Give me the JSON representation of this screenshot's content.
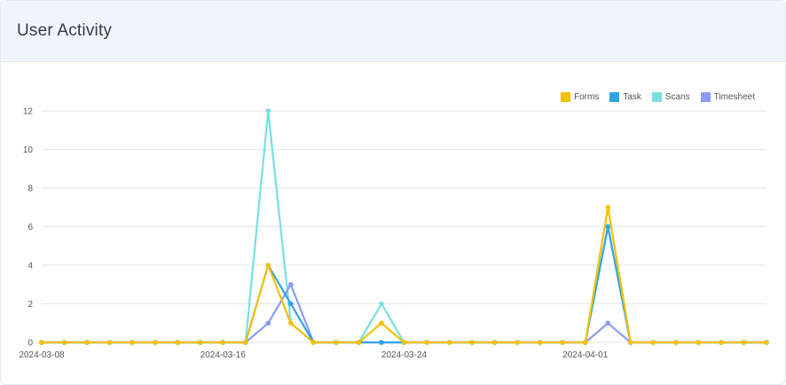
{
  "header": {
    "title": "User Activity"
  },
  "chart_data": {
    "type": "line",
    "title": "",
    "xlabel": "",
    "ylabel": "",
    "ylim": [
      0,
      12
    ],
    "yticks": [
      0,
      2,
      4,
      6,
      8,
      10,
      12
    ],
    "x": [
      "2024-03-08",
      "2024-03-09",
      "2024-03-10",
      "2024-03-11",
      "2024-03-12",
      "2024-03-13",
      "2024-03-14",
      "2024-03-15",
      "2024-03-16",
      "2024-03-17",
      "2024-03-18",
      "2024-03-19",
      "2024-03-20",
      "2024-03-21",
      "2024-03-22",
      "2024-03-23",
      "2024-03-24",
      "2024-03-25",
      "2024-03-26",
      "2024-03-27",
      "2024-03-28",
      "2024-03-29",
      "2024-03-30",
      "2024-03-31",
      "2024-04-01",
      "2024-04-02",
      "2024-04-03",
      "2024-04-04",
      "2024-04-05",
      "2024-04-06",
      "2024-04-07",
      "2024-04-08",
      "2024-04-09"
    ],
    "xticks": [
      "2024-03-08",
      "2024-03-16",
      "2024-03-24",
      "2024-04-01"
    ],
    "grid": true,
    "legend_position": "top-right",
    "series": [
      {
        "name": "Forms",
        "color": "#f5c000",
        "values": [
          0,
          0,
          0,
          0,
          0,
          0,
          0,
          0,
          0,
          0,
          4,
          1,
          0,
          0,
          0,
          1,
          0,
          0,
          0,
          0,
          0,
          0,
          0,
          0,
          0,
          7,
          0,
          0,
          0,
          0,
          0,
          0,
          0
        ]
      },
      {
        "name": "Task",
        "color": "#2fa3e8",
        "values": [
          0,
          0,
          0,
          0,
          0,
          0,
          0,
          0,
          0,
          0,
          4,
          2,
          0,
          0,
          0,
          0,
          0,
          0,
          0,
          0,
          0,
          0,
          0,
          0,
          0,
          6,
          0,
          0,
          0,
          0,
          0,
          0,
          0
        ]
      },
      {
        "name": "Scans",
        "color": "#77e0e3",
        "values": [
          0,
          0,
          0,
          0,
          0,
          0,
          0,
          0,
          0,
          0,
          12,
          1,
          0,
          0,
          0,
          2,
          0,
          0,
          0,
          0,
          0,
          0,
          0,
          0,
          0,
          6,
          0,
          0,
          0,
          0,
          0,
          0,
          0
        ]
      },
      {
        "name": "Timesheet",
        "color": "#8a9cf5",
        "values": [
          0,
          0,
          0,
          0,
          0,
          0,
          0,
          0,
          0,
          0,
          1,
          3,
          0,
          0,
          0,
          0,
          0,
          0,
          0,
          0,
          0,
          0,
          0,
          0,
          0,
          1,
          0,
          0,
          0,
          0,
          0,
          0,
          0
        ]
      }
    ]
  }
}
